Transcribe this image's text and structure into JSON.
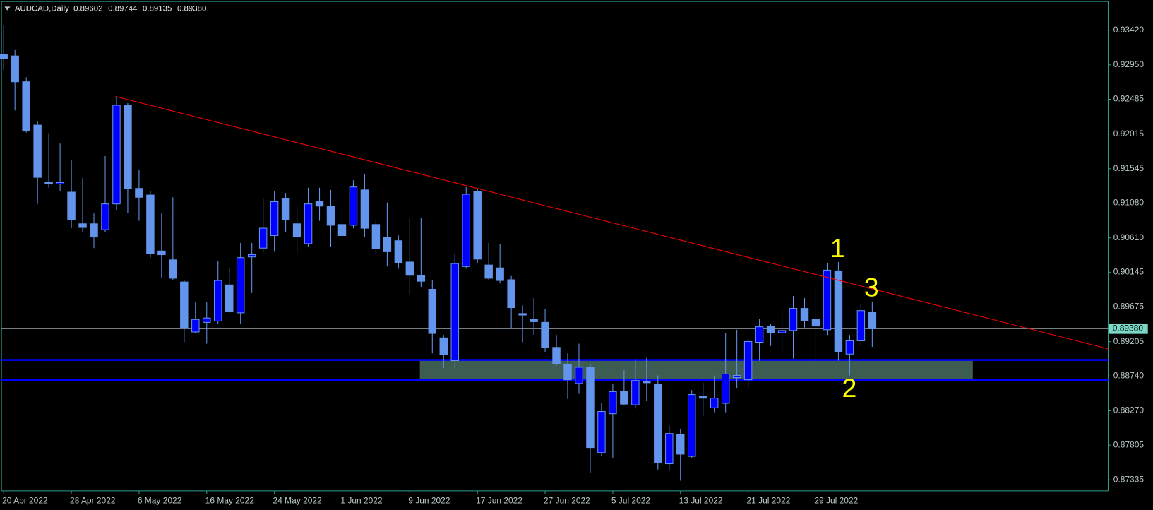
{
  "chart_data": {
    "type": "candlestick",
    "title": "AUDCAD,Daily",
    "ohlc_labels": [
      "0.89602",
      "0.89744",
      "0.89135",
      "0.89380"
    ],
    "categories": [
      "20 Apr 2022",
      null,
      null,
      null,
      null,
      null,
      "28 Apr 2022",
      null,
      null,
      null,
      null,
      null,
      "6 May 2022",
      null,
      null,
      null,
      null,
      null,
      "16 May 2022",
      null,
      null,
      null,
      null,
      null,
      "24 May 2022",
      null,
      null,
      null,
      null,
      null,
      "1 Jun 2022",
      null,
      null,
      null,
      null,
      null,
      "9 Jun 2022",
      null,
      null,
      null,
      null,
      null,
      "17 Jun 2022",
      null,
      null,
      null,
      null,
      null,
      "27 Jun 2022",
      null,
      null,
      null,
      null,
      null,
      "5 Jul 2022",
      null,
      null,
      null,
      null,
      null,
      "13 Jul 2022",
      null,
      null,
      null,
      null,
      null,
      "21 Jul 2022",
      null,
      null,
      null,
      null,
      null,
      "29 Jul 2022",
      null,
      null,
      null,
      null,
      null
    ],
    "open": [
      0.93091,
      0.93071,
      0.92722,
      0.92135,
      0.91358,
      0.91338,
      0.91228,
      0.908,
      0.908,
      0.9072,
      0.91069,
      0.92404,
      0.91278,
      0.91189,
      0.90432,
      0.90312,
      0.90013,
      0.89336,
      0.89466,
      0.89485,
      0.89973,
      0.89595,
      0.90352,
      0.90471,
      0.90641,
      0.91139,
      0.908,
      0.90531,
      0.91099,
      0.91039,
      0.9079,
      0.9078,
      0.91258,
      0.9079,
      0.90621,
      0.90571,
      0.90282,
      0.90103,
      0.89914,
      0.89256,
      0.88948,
      0.90222,
      0.91238,
      0.90242,
      0.90203,
      0.90043,
      0.89585,
      0.89505,
      0.89466,
      0.89127,
      0.88898,
      0.88639,
      0.88858,
      0.87703,
      0.8823,
      0.88529,
      0.8835,
      0.88669,
      0.88629,
      0.87553,
      0.87952,
      0.87653,
      0.8847,
      0.8831,
      0.8837,
      0.88719,
      0.88689,
      0.89197,
      0.89416,
      0.89326,
      0.89356,
      0.89655,
      0.89505,
      0.89366,
      0.90163,
      0.89037,
      0.89217,
      0.89602
    ],
    "high": [
      0.93479,
      0.93151,
      0.92782,
      0.92185,
      0.92025,
      0.91886,
      0.91657,
      0.91418,
      0.9094,
      0.91716,
      0.92523,
      0.92434,
      0.91527,
      0.91248,
      0.9094,
      0.91159,
      0.90043,
      0.89744,
      0.89744,
      0.90292,
      0.90203,
      0.90541,
      0.90541,
      0.91139,
      0.91238,
      0.91218,
      0.91039,
      0.91288,
      0.91288,
      0.91258,
      0.91039,
      0.91388,
      0.91467,
      0.9086,
      0.91089,
      0.90641,
      0.9087,
      0.9088,
      0.90043,
      0.89296,
      0.90392,
      0.91298,
      0.91278,
      0.90541,
      0.90521,
      0.90093,
      0.89695,
      0.89794,
      0.89645,
      0.89296,
      0.89047,
      0.89177,
      0.88898,
      0.8837,
      0.88629,
      0.88818,
      0.88968,
      0.88987,
      0.88748,
      0.88071,
      0.88021,
      0.88549,
      0.88649,
      0.88748,
      0.89326,
      0.89366,
      0.89246,
      0.89515,
      0.89446,
      0.89645,
      0.89824,
      0.89794,
      0.89944,
      0.90272,
      0.90282,
      0.89296,
      0.89715,
      0.89744
    ],
    "low": [
      0.92882,
      0.92334,
      0.92035,
      0.91069,
      0.91288,
      0.91238,
      0.9074,
      0.90691,
      0.90471,
      0.90691,
      0.90989,
      0.9095,
      0.9084,
      0.90342,
      0.90063,
      0.90043,
      0.89197,
      0.89326,
      0.89177,
      0.89446,
      0.89595,
      0.89446,
      0.89864,
      0.90412,
      0.90422,
      0.90691,
      0.90392,
      0.90491,
      0.9084,
      0.90491,
      0.90591,
      0.9074,
      0.90621,
      0.90392,
      0.90222,
      0.90193,
      0.89844,
      0.89944,
      0.89047,
      0.88848,
      0.88848,
      0.90193,
      0.90262,
      0.90043,
      0.89993,
      0.89376,
      0.89197,
      0.89296,
      0.89067,
      0.88878,
      0.8843,
      0.88499,
      0.87434,
      0.87653,
      0.87633,
      0.8835,
      0.883,
      0.884,
      0.87474,
      0.87454,
      0.87324,
      0.87633,
      0.88201,
      0.8825,
      0.8825,
      0.88579,
      0.88579,
      0.88948,
      0.89147,
      0.89067,
      0.88977,
      0.89396,
      0.88768,
      0.89296,
      0.88948,
      0.88748,
      0.89147,
      0.89135
    ],
    "close": [
      0.93031,
      0.92722,
      0.92055,
      0.91428,
      0.91338,
      0.91358,
      0.9086,
      0.9075,
      0.90621,
      0.91069,
      0.92404,
      0.91278,
      0.91159,
      0.90392,
      0.90382,
      0.90063,
      0.89386,
      0.89505,
      0.89525,
      0.90033,
      0.89615,
      0.90342,
      0.90382,
      0.9074,
      0.91099,
      0.9086,
      0.90621,
      0.91069,
      0.91039,
      0.9078,
      0.90641,
      0.91298,
      0.9074,
      0.90462,
      0.90422,
      0.90272,
      0.90103,
      0.90023,
      0.89316,
      0.89027,
      0.90262,
      0.91199,
      0.90322,
      0.90063,
      0.90033,
      0.89665,
      0.89565,
      0.89475,
      0.89127,
      0.88908,
      0.88689,
      0.88858,
      0.87772,
      0.8826,
      0.88529,
      0.8836,
      0.88679,
      0.88649,
      0.87573,
      0.87962,
      0.87683,
      0.88489,
      0.8844,
      0.8844,
      0.88768,
      0.88748,
      0.89207,
      0.89406,
      0.89326,
      0.89356,
      0.89655,
      0.89485,
      0.89416,
      0.90173,
      0.89067,
      0.89217,
      0.89625,
      0.8938
    ],
    "bull_color": "#0000ff",
    "bear_color": "#6495ed",
    "wick_color": "#6495ed",
    "ylim": [
      0.87186,
      0.93808
    ],
    "yticks": [
      {
        "value": 0.9342,
        "label": "0.93420"
      },
      {
        "value": 0.9295,
        "label": "0.92950"
      },
      {
        "value": 0.92485,
        "label": "0.92485"
      },
      {
        "value": 0.92015,
        "label": "0.92015"
      },
      {
        "value": 0.91545,
        "label": "0.91545"
      },
      {
        "value": 0.9108,
        "label": "0.91080"
      },
      {
        "value": 0.9061,
        "label": "0.90610"
      },
      {
        "value": 0.90145,
        "label": "0.90145"
      },
      {
        "value": 0.89675,
        "label": "0.89675"
      },
      {
        "value": 0.89205,
        "label": "0.89205"
      },
      {
        "value": 0.8874,
        "label": "0.88740"
      },
      {
        "value": 0.8827,
        "label": "0.88270"
      },
      {
        "value": 0.87805,
        "label": "0.87805"
      },
      {
        "value": 0.87335,
        "label": "0.87335"
      }
    ],
    "last_price": {
      "value": 0.8938,
      "label": "0.89380"
    },
    "levels": [
      {
        "value": 0.88958,
        "color": "#0000ff"
      },
      {
        "value": 0.88689,
        "color": "#0000ff"
      }
    ],
    "zone": {
      "values": [
        0.88958,
        0.88689
      ],
      "color": "#3d5c52"
    },
    "trendline": {
      "values": [
        0.92523,
        0.89108
      ],
      "color": "#ff0000"
    },
    "annotations": [
      "1",
      "2",
      "3"
    ],
    "annotation_color": "#ffff00"
  }
}
